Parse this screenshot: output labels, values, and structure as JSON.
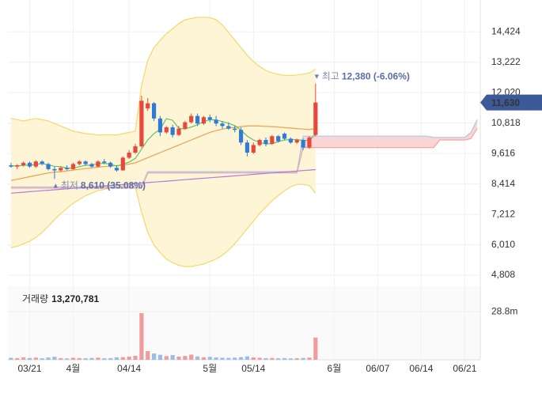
{
  "chart_data": {
    "type": "candlestick",
    "categories": [
      null,
      null,
      null,
      "03/21",
      null,
      null,
      null,
      null,
      null,
      null,
      "4월",
      null,
      null,
      null,
      null,
      null,
      null,
      null,
      null,
      "04/14",
      null,
      null,
      null,
      null,
      null,
      null,
      null,
      null,
      null,
      null,
      null,
      null,
      "5월",
      null,
      null,
      null,
      null,
      null,
      null,
      "05/14",
      null,
      null,
      null,
      null,
      null,
      null,
      null,
      null,
      null,
      null,
      null,
      null,
      "6월",
      null,
      null,
      null,
      null,
      null,
      null,
      "06/07",
      null,
      null,
      null,
      null,
      null,
      null,
      "06/14",
      null,
      null,
      null,
      null,
      null,
      null,
      "06/21",
      null,
      null
    ],
    "ylim": [
      4560,
      15680
    ],
    "yticks": [
      {
        "value": 14424,
        "label": "14,424"
      },
      {
        "value": 13222,
        "label": "13,222"
      },
      {
        "value": 12020,
        "label": "12,020"
      },
      {
        "value": 10818,
        "label": "10,818"
      },
      {
        "value": 9616,
        "label": "9,616"
      },
      {
        "value": 8414,
        "label": "8,414"
      },
      {
        "value": 7212,
        "label": "7,212"
      },
      {
        "value": 6010,
        "label": "6,010"
      },
      {
        "value": 4808,
        "label": "4,808"
      }
    ],
    "grid": true,
    "up_color": "#e8483b",
    "down_color": "#2f7bd6",
    "open": [
      9150,
      9100,
      9150,
      9250,
      9100,
      9300,
      9200,
      9000,
      8950,
      9050,
      9000,
      9200,
      9300,
      9200,
      9100,
      9300,
      9250,
      9050,
      8950,
      9450,
      9650,
      9900,
      11400,
      11600,
      11000,
      10450,
      10650,
      10350,
      10600,
      10850,
      11100,
      10800,
      11050,
      10950,
      10800,
      10700,
      10600,
      10550,
      10050,
      9650,
      9950,
      10150,
      10000,
      10300,
      10400,
      10200,
      10050,
      10150,
      9850,
      10350,
      null,
      null,
      null,
      null,
      null,
      null,
      null,
      null,
      null,
      null,
      null,
      null,
      null,
      null,
      null,
      null,
      null,
      null,
      null,
      null,
      null,
      null,
      null,
      null,
      null,
      null
    ],
    "high": [
      9250,
      9200,
      9300,
      9300,
      9350,
      9350,
      9250,
      9100,
      9100,
      9150,
      9250,
      9350,
      9350,
      9250,
      9350,
      9400,
      9300,
      9150,
      9500,
      9750,
      10000,
      11900,
      11800,
      11650,
      11100,
      10700,
      10750,
      10700,
      10900,
      11200,
      11200,
      11100,
      11150,
      11100,
      10900,
      10850,
      10700,
      10650,
      10150,
      10050,
      10200,
      10250,
      10350,
      10350,
      10450,
      10250,
      10200,
      10200,
      10300,
      12380,
      null,
      null,
      null,
      null,
      null,
      null,
      null,
      null,
      null,
      null,
      null,
      null,
      null,
      null,
      null,
      null,
      null,
      null,
      null,
      null,
      null,
      null,
      null,
      null,
      null,
      null
    ],
    "low": [
      9050,
      9000,
      9100,
      9050,
      9050,
      9150,
      8950,
      8610,
      8900,
      8950,
      8980,
      9150,
      9150,
      9050,
      9080,
      9200,
      9050,
      8900,
      8940,
      9400,
      9600,
      9850,
      11300,
      10900,
      10300,
      10400,
      10250,
      10300,
      10550,
      10800,
      10700,
      10750,
      10850,
      10700,
      10600,
      10550,
      10450,
      9950,
      9500,
      9600,
      9900,
      9900,
      9950,
      10050,
      10150,
      10000,
      10000,
      9750,
      9800,
      10300,
      null,
      null,
      null,
      null,
      null,
      null,
      null,
      null,
      null,
      null,
      null,
      null,
      null,
      null,
      null,
      null,
      null,
      null,
      null,
      null,
      null,
      null,
      null,
      null,
      null,
      null
    ],
    "close": [
      9100,
      9150,
      9250,
      9100,
      9300,
      9200,
      9000,
      8950,
      9050,
      9000,
      9200,
      9300,
      9200,
      9100,
      9300,
      9250,
      9100,
      8950,
      9450,
      9650,
      9900,
      11700,
      11600,
      11000,
      10450,
      10650,
      10350,
      10600,
      10850,
      11100,
      10800,
      11050,
      10950,
      10800,
      10700,
      10600,
      10550,
      10050,
      9650,
      9950,
      10150,
      10000,
      10300,
      10100,
      10200,
      10050,
      10150,
      9850,
      10250,
      11630,
      null,
      null,
      null,
      null,
      null,
      null,
      null,
      null,
      null,
      null,
      null,
      null,
      null,
      null,
      null,
      null,
      null,
      null,
      null,
      null,
      null,
      null,
      null,
      null,
      null,
      null
    ],
    "bands": [
      {
        "color": "#fdf5d6",
        "stroke": "#f3d96a",
        "upper": [
          11000,
          10950,
          10900,
          10950,
          11000,
          10950,
          10900,
          10800,
          10700,
          10600,
          10500,
          10450,
          10400,
          10380,
          10350,
          10350,
          10350,
          10350,
          10400,
          10450,
          10500,
          12300,
          13300,
          13800,
          14100,
          14350,
          14550,
          14750,
          14900,
          14950,
          15000,
          15000,
          14980,
          14900,
          14700,
          14400,
          14100,
          13800,
          13500,
          13250,
          13050,
          12900,
          12800,
          12750,
          12700,
          12700,
          12720,
          12750,
          12800,
          12950,
          null,
          null,
          null,
          null,
          null,
          null,
          null,
          null,
          null,
          null,
          null,
          null,
          null,
          null,
          null,
          null,
          null,
          null,
          null,
          null,
          null,
          null,
          null,
          null,
          null,
          null
        ],
        "lower": [
          5900,
          5950,
          6050,
          6150,
          6300,
          6500,
          6750,
          7000,
          7250,
          7450,
          7650,
          7800,
          7950,
          8050,
          8150,
          8200,
          8250,
          8300,
          8350,
          8350,
          8300,
          7300,
          6500,
          6000,
          5700,
          5450,
          5300,
          5200,
          5150,
          5150,
          5200,
          5250,
          5350,
          5450,
          5600,
          5800,
          6050,
          6350,
          6650,
          6950,
          7250,
          7500,
          7750,
          7950,
          8150,
          8300,
          8400,
          8400,
          8350,
          8050,
          null,
          null,
          null,
          null,
          null,
          null,
          null,
          null,
          null,
          null,
          null,
          null,
          null,
          null,
          null,
          null,
          null,
          null,
          null,
          null,
          null,
          null,
          null,
          null,
          null,
          null
        ]
      },
      {
        "color": "#fbd4d4",
        "stroke": "#a9c7ee",
        "stroke2": "#f2a3a3",
        "upper": [
          8300,
          8300,
          8300,
          8300,
          8300,
          8300,
          8300,
          8300,
          8300,
          8300,
          8300,
          8300,
          8300,
          8300,
          8300,
          8300,
          8300,
          8300,
          8300,
          8300,
          8300,
          8300,
          8900,
          8900,
          8900,
          8900,
          8900,
          8900,
          8900,
          8900,
          8900,
          8900,
          8900,
          8900,
          8900,
          8900,
          8900,
          8900,
          8900,
          8900,
          8900,
          8900,
          8900,
          8900,
          8900,
          8900,
          8900,
          10300,
          10300,
          10300,
          10300,
          10300,
          10300,
          10300,
          10300,
          10300,
          10300,
          10300,
          10300,
          10300,
          10300,
          10300,
          10300,
          10300,
          10300,
          10300,
          10300,
          10300,
          10250,
          10250,
          10250,
          10250,
          10250,
          10250,
          10450,
          10950
        ],
        "lower": [
          8250,
          8250,
          8250,
          8250,
          8250,
          8250,
          8250,
          8250,
          8250,
          8250,
          8250,
          8250,
          8250,
          8250,
          8250,
          8250,
          8250,
          8250,
          8250,
          8250,
          8250,
          8250,
          8850,
          8850,
          8850,
          8850,
          8850,
          8850,
          8850,
          8850,
          8850,
          8850,
          8850,
          8850,
          8850,
          8850,
          8850,
          8850,
          8850,
          8850,
          8850,
          8850,
          8850,
          8850,
          8850,
          8850,
          8850,
          9850,
          9850,
          9850,
          9850,
          9850,
          9850,
          9850,
          9850,
          9850,
          9850,
          9850,
          9850,
          9850,
          9850,
          9850,
          9850,
          9850,
          9850,
          9850,
          9850,
          9850,
          9850,
          10150,
          10150,
          10150,
          10150,
          10150,
          10200,
          10600
        ]
      }
    ],
    "overlays": [
      {
        "color": "#b07cd8",
        "values": [
          8050,
          8069,
          8088,
          8107,
          8126,
          8145,
          8164,
          8183,
          8202,
          8221,
          8240,
          8259,
          8278,
          8297,
          8316,
          8335,
          8354,
          8373,
          8392,
          8411,
          8430,
          8449,
          8468,
          8487,
          8506,
          8525,
          8544,
          8563,
          8582,
          8601,
          8620,
          8639,
          8658,
          8677,
          8696,
          8715,
          8734,
          8753,
          8772,
          8791,
          8810,
          8829,
          8848,
          8867,
          8886,
          8905,
          8924,
          8943,
          8962,
          8981,
          null,
          null,
          null,
          null,
          null,
          null,
          null,
          null,
          null,
          null,
          null,
          null,
          null,
          null,
          null,
          null,
          null,
          null,
          null,
          null,
          null,
          null,
          null,
          null,
          null,
          null
        ]
      },
      {
        "color": "#f0a050",
        "values": [
          8550,
          8600,
          8650,
          8700,
          8750,
          8800,
          8850,
          8880,
          8900,
          8930,
          8960,
          8990,
          9020,
          9050,
          9080,
          9100,
          9120,
          9140,
          9160,
          9200,
          9250,
          9350,
          9450,
          9550,
          9650,
          9750,
          9850,
          9950,
          10050,
          10150,
          10250,
          10350,
          10450,
          10520,
          10580,
          10620,
          10650,
          10680,
          10700,
          10710,
          10700,
          10690,
          10680,
          10660,
          10640,
          10620,
          10600,
          10580,
          10560,
          10600,
          null,
          null,
          null,
          null,
          null,
          null,
          null,
          null,
          null,
          null,
          null,
          null,
          null,
          null,
          null,
          null,
          null,
          null,
          null,
          null,
          null,
          null,
          null,
          null,
          null,
          null
        ]
      },
      {
        "color": "#5cc46a",
        "values": [
          9120,
          9130,
          9150,
          9160,
          9180,
          9220,
          9170,
          9110,
          9100,
          9040,
          9040,
          9100,
          9150,
          9160,
          9220,
          9230,
          9190,
          9120,
          9190,
          9280,
          9420,
          9790,
          10150,
          10400,
          10580,
          10990,
          10930,
          10610,
          10590,
          10660,
          10750,
          10880,
          10950,
          10940,
          10880,
          10810,
          10720,
          10540,
          10300,
          10150,
          10060,
          9990,
          10010,
          10080,
          10150,
          10160,
          10170,
          10130,
          10140,
          10380,
          null,
          null,
          null,
          null,
          null,
          null,
          null,
          null,
          null,
          null,
          null,
          null,
          null,
          null,
          null,
          null,
          null,
          null,
          null,
          null,
          null,
          null,
          null,
          null,
          null,
          null
        ]
      }
    ],
    "annotations": [
      {
        "marker": "▼",
        "label": "최고",
        "value": 12380,
        "value_label": "12,380 (-6.06%)"
      },
      {
        "marker": "▲",
        "label": "최저",
        "value": 8610,
        "value_label": "8,610 (35.08%)"
      }
    ],
    "last_price": {
      "value": 11630,
      "label": "11,630",
      "color": "#3d5a98"
    },
    "volume": {
      "type": "bar",
      "title": "거래량",
      "up_color": "#f09c9c",
      "down_color": "#9dbde9",
      "values": [
        1200000,
        1000000,
        1500000,
        1100000,
        1300000,
        900000,
        1400000,
        1800000,
        1000000,
        800000,
        1200000,
        1000000,
        900000,
        1100000,
        1300000,
        900000,
        1000000,
        1500000,
        1600000,
        1900000,
        2400000,
        27900000,
        5200000,
        3800000,
        3000000,
        2200000,
        2800000,
        1900000,
        2300000,
        3100000,
        2000000,
        1500000,
        1800000,
        1400000,
        1200000,
        1100000,
        1300000,
        1600000,
        2100000,
        1400000,
        1200000,
        1000000,
        1100000,
        900000,
        1000000,
        800000,
        900000,
        1100000,
        1300000,
        13270781,
        null,
        null,
        null,
        null,
        null,
        null,
        null,
        null,
        null,
        null,
        null,
        null,
        null,
        null,
        null,
        null,
        null,
        null,
        null,
        null,
        null,
        null,
        null,
        null,
        null,
        null
      ],
      "value_labels": [
        null,
        null,
        null,
        null,
        null,
        null,
        null,
        null,
        null,
        null,
        null,
        null,
        null,
        null,
        null,
        null,
        null,
        null,
        null,
        null,
        null,
        null,
        null,
        null,
        null,
        null,
        null,
        null,
        null,
        null,
        null,
        null,
        null,
        null,
        null,
        null,
        null,
        null,
        null,
        null,
        null,
        null,
        null,
        null,
        null,
        null,
        null,
        null,
        null,
        "13,270,781",
        null,
        null,
        null,
        null,
        null,
        null,
        null,
        null,
        null,
        null,
        null,
        null,
        null,
        null,
        null,
        null,
        null,
        null,
        null,
        null,
        null,
        null,
        null,
        null,
        null,
        null
      ],
      "ylim": [
        0,
        44000000
      ],
      "yticks": [
        {
          "value": 28800000,
          "label": "28.8m"
        }
      ]
    }
  }
}
